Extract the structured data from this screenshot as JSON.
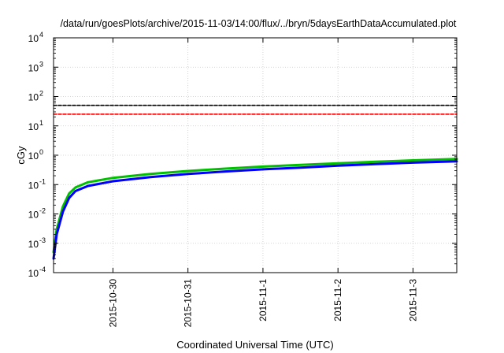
{
  "chart_data": {
    "type": "line",
    "title": "/data/run/goesPlots/archive/2015-11-03/14:00/flux/../bryn/5daysEarthDataAccumulated.plot",
    "xlabel": "Coordinated Universal Time (UTC)",
    "ylabel": "cGy",
    "yscale": "log",
    "ylim": [
      0.0001,
      10000
    ],
    "xlim": [
      "2015-10-29 05:00",
      "2015-11-03 14:00"
    ],
    "grid": true,
    "y_ticks": [
      {
        "value": 0.0001,
        "base": "10",
        "exp": "-4"
      },
      {
        "value": 0.001,
        "base": "10",
        "exp": "-3"
      },
      {
        "value": 0.01,
        "base": "10",
        "exp": "-2"
      },
      {
        "value": 0.1,
        "base": "10",
        "exp": "-1"
      },
      {
        "value": 1,
        "base": "10",
        "exp": "0"
      },
      {
        "value": 10,
        "base": "10",
        "exp": "1"
      },
      {
        "value": 100,
        "base": "10",
        "exp": "2"
      },
      {
        "value": 1000,
        "base": "10",
        "exp": "3"
      },
      {
        "value": 10000,
        "base": "10",
        "exp": "4"
      }
    ],
    "x_ticks": [
      "2015-10-30",
      "2015-10-31",
      "2015-11-1",
      "2015-11-2",
      "2015-11-3"
    ],
    "series": [
      {
        "color": "#00c000",
        "style": "solid",
        "x": [
          "2015-10-29 05:00",
          "2015-10-29 06:00",
          "2015-10-29 08:00",
          "2015-10-29 10:00",
          "2015-10-29 12:00",
          "2015-10-29 16:00",
          "2015-10-30 00:00",
          "2015-10-30 12:00",
          "2015-10-31 00:00",
          "2015-10-31 12:00",
          "2015-11-01 00:00",
          "2015-11-01 12:00",
          "2015-11-02 00:00",
          "2015-11-02 12:00",
          "2015-11-03 00:00",
          "2015-11-03 14:00"
        ],
        "values": [
          0.0005,
          0.003,
          0.018,
          0.05,
          0.08,
          0.12,
          0.17,
          0.23,
          0.29,
          0.35,
          0.41,
          0.47,
          0.53,
          0.6,
          0.67,
          0.75
        ]
      },
      {
        "color": "#0000ff",
        "style": "solid",
        "x": [
          "2015-10-29 05:00",
          "2015-10-29 06:00",
          "2015-10-29 08:00",
          "2015-10-29 10:00",
          "2015-10-29 12:00",
          "2015-10-29 16:00",
          "2015-10-30 00:00",
          "2015-10-30 12:00",
          "2015-10-31 00:00",
          "2015-10-31 12:00",
          "2015-11-01 00:00",
          "2015-11-01 12:00",
          "2015-11-02 00:00",
          "2015-11-02 12:00",
          "2015-11-03 00:00",
          "2015-11-03 14:00"
        ],
        "values": [
          0.0003,
          0.002,
          0.012,
          0.035,
          0.06,
          0.09,
          0.13,
          0.18,
          0.23,
          0.28,
          0.33,
          0.38,
          0.44,
          0.5,
          0.56,
          0.62
        ]
      },
      {
        "color": "#000000",
        "style": "dashed",
        "x": [
          "2015-10-29 05:00",
          "2015-11-03 14:00"
        ],
        "values": [
          50,
          50
        ]
      },
      {
        "color": "#ff0000",
        "style": "dashed",
        "x": [
          "2015-10-29 05:00",
          "2015-11-03 14:00"
        ],
        "values": [
          25,
          25
        ]
      }
    ]
  }
}
